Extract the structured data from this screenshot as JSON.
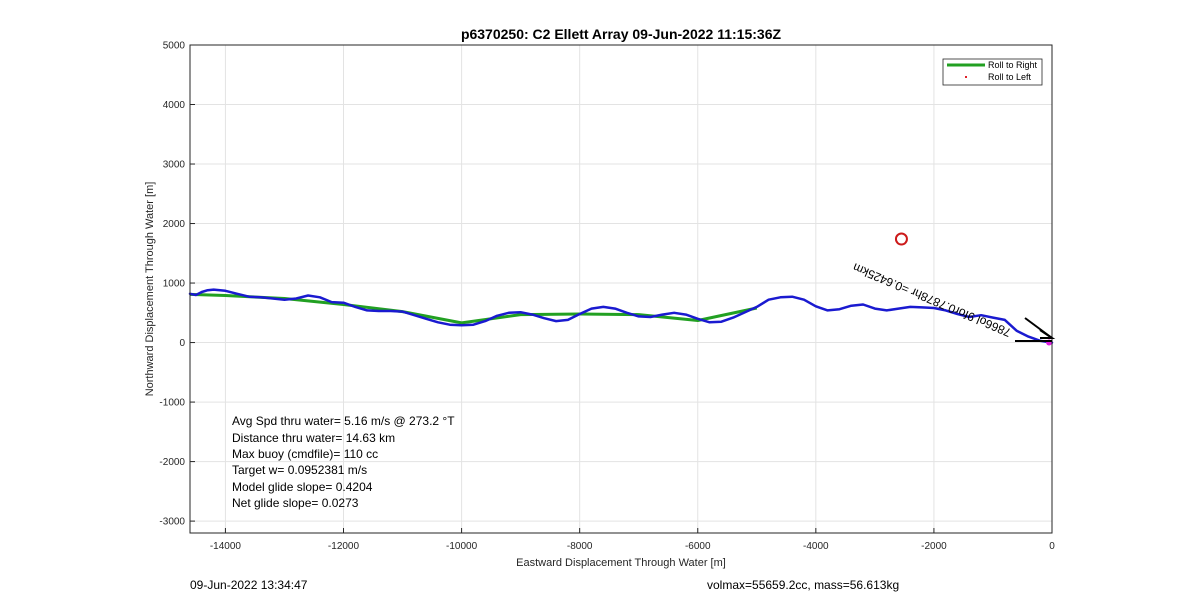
{
  "chart_data": {
    "type": "line",
    "title": "p6370250: C2 Ellett Array 09-Jun-2022 11:15:36Z",
    "xlabel": "Eastward Displacement Through Water [m]",
    "ylabel": "Northward Displacement Through Water [m]",
    "xlim": [
      -14600,
      0
    ],
    "ylim": [
      -3200,
      5000
    ],
    "xticks": [
      -14000,
      -12000,
      -10000,
      -8000,
      -6000,
      -4000,
      -2000,
      0
    ],
    "yticks": [
      -3000,
      -2000,
      -1000,
      0,
      1000,
      2000,
      3000,
      4000,
      5000
    ],
    "grid": true,
    "legend_position": "top-right",
    "legend": [
      "Roll to Right",
      "Roll to Left"
    ],
    "colors": {
      "roll_right": "#22a022",
      "roll_left": "#e0202a",
      "track": "#1a1ad0",
      "target": "#cc1a1a",
      "current": "#000000"
    },
    "series": [
      {
        "name": "Roll to Right",
        "x": [
          -14600,
          -14000,
          -13000,
          -12000,
          -11000,
          -10000,
          -9000,
          -8000,
          -7000,
          -6000,
          -5000
        ],
        "y": [
          810,
          790,
          740,
          640,
          520,
          330,
          470,
          480,
          470,
          370,
          580
        ]
      },
      {
        "x": [
          -14600,
          -14500,
          -14400,
          -14300,
          -14200,
          -14000,
          -13800,
          -13600,
          -13400,
          -13200,
          -13000,
          -12800,
          -12600,
          -12400,
          -12200,
          -12000,
          -11800,
          -11600,
          -11400,
          -11200,
          -11000,
          -10800,
          -10600,
          -10400,
          -10200,
          -10000,
          -9800,
          -9600,
          -9400,
          -9200,
          -9000,
          -8800,
          -8600,
          -8400,
          -8200,
          -8000,
          -7800,
          -7600,
          -7400,
          -7200,
          -7000,
          -6800,
          -6600,
          -6400,
          -6200,
          -6000,
          -5800,
          -5600,
          -5400,
          -5200,
          -5000,
          -4800,
          -4600,
          -4400,
          -4200,
          -4000,
          -3800,
          -3600,
          -3400,
          -3200,
          -3000,
          -2800,
          -2600,
          -2400,
          -2200,
          -2000,
          -1800,
          -1600,
          -1400,
          -1200,
          -1000,
          -800,
          -600,
          -400,
          -200,
          0
        ],
        "y": [
          820,
          800,
          850,
          880,
          890,
          870,
          820,
          770,
          760,
          740,
          720,
          740,
          790,
          760,
          680,
          670,
          600,
          540,
          530,
          530,
          520,
          460,
          400,
          340,
          300,
          290,
          300,
          360,
          450,
          500,
          510,
          470,
          410,
          360,
          380,
          480,
          570,
          600,
          570,
          500,
          440,
          430,
          470,
          500,
          470,
          400,
          340,
          350,
          420,
          510,
          600,
          720,
          760,
          770,
          720,
          610,
          540,
          560,
          620,
          640,
          570,
          540,
          570,
          600,
          590,
          580,
          540,
          480,
          430,
          460,
          420,
          380,
          200,
          100,
          30,
          0
        ]
      }
    ],
    "target": {
      "x": -2550,
      "y": 1740
    },
    "annotation": "=0.6425km",
    "annotation_prefix": "7866ol 9for0.7878hr ",
    "stats": [
      "Avg Spd thru water=  5.16 m/s @ 273.2 °T",
      "Distance thru water= 14.63 km",
      "Max buoy (cmdfile)= 110 cc",
      "Target w= 0.0952381 m/s",
      "Model glide slope= 0.4204",
      "Net glide slope= 0.0273"
    ]
  },
  "footer": {
    "timestamp": "09-Jun-2022 13:34:47",
    "vol_mass": "volmax=55659.2cc, mass=56.613kg"
  }
}
